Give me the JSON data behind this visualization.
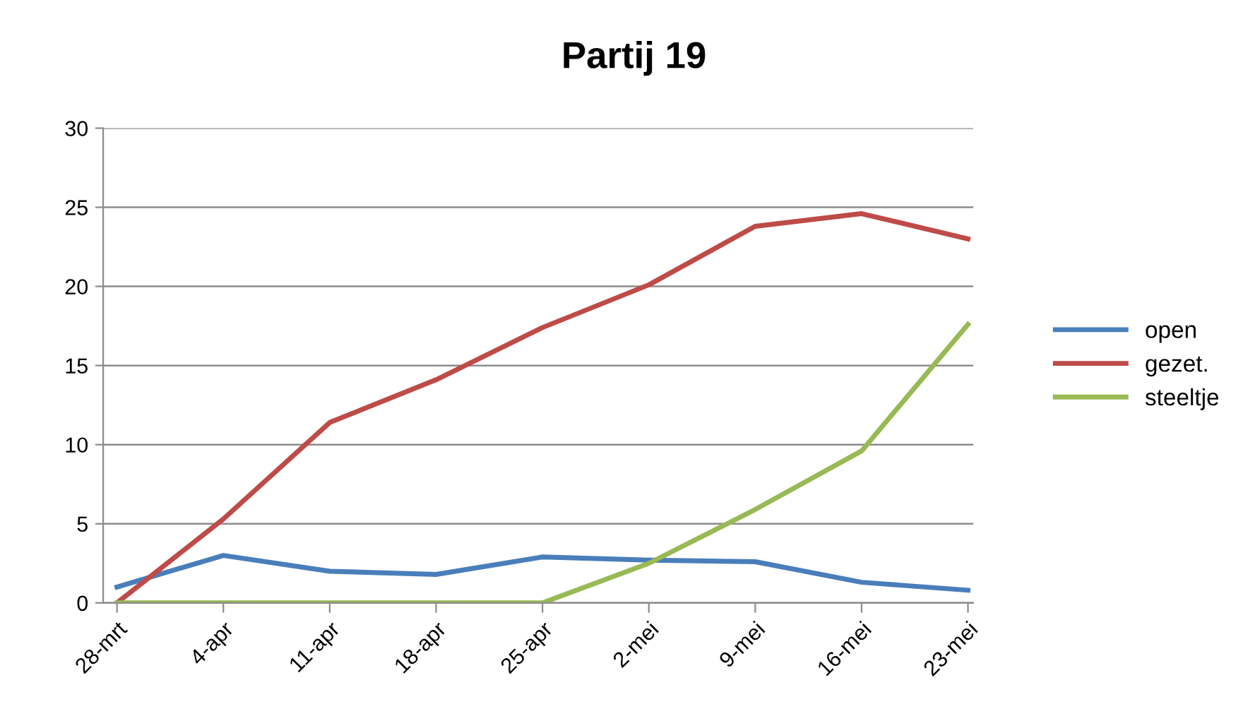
{
  "chart_data": {
    "type": "line",
    "title": "Partij 19",
    "categories": [
      "28-mrt",
      "4-apr",
      "11-apr",
      "18-apr",
      "25-apr",
      "2-mei",
      "9-mei",
      "16-mei",
      "23-mei"
    ],
    "series": [
      {
        "name": "open",
        "color": "#4a7ebb",
        "values": [
          1.0,
          3.0,
          2.0,
          1.8,
          2.9,
          2.7,
          2.6,
          1.3,
          0.8
        ]
      },
      {
        "name": "gezet.",
        "color": "#be4b48",
        "values": [
          0,
          5.3,
          11.4,
          14.1,
          17.4,
          20.1,
          23.8,
          24.6,
          23.0
        ]
      },
      {
        "name": "steeltje",
        "color": "#98b954",
        "values": [
          0,
          0,
          0,
          0,
          0,
          2.5,
          5.9,
          9.6,
          17.6
        ]
      }
    ],
    "ylim": [
      0,
      30
    ],
    "yticks": [
      0,
      5,
      10,
      15,
      20,
      25,
      30
    ],
    "grid": "y",
    "legend": "right",
    "marker": "none",
    "line_style": "solid"
  }
}
